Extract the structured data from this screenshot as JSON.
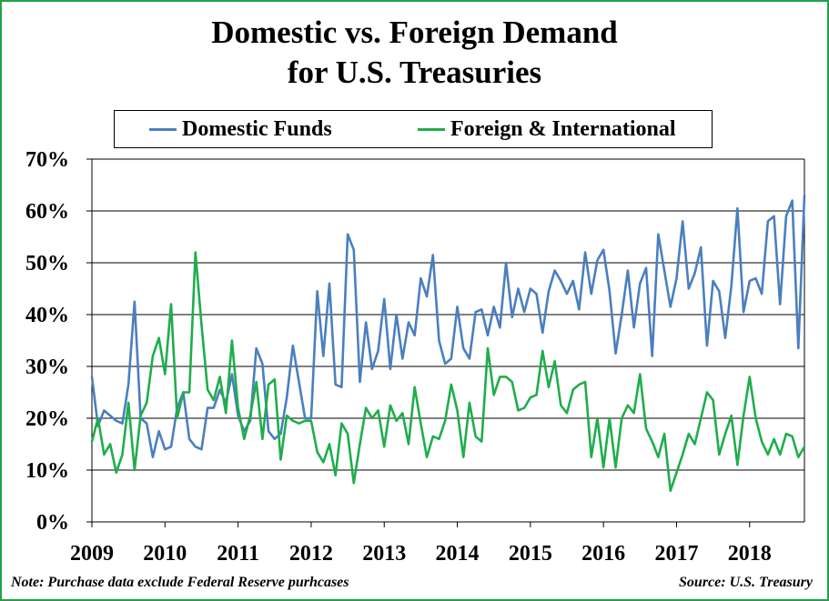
{
  "title_line1": "Domestic vs. Foreign Demand",
  "title_line2": "for U.S. Treasuries",
  "note": "Note: Purchase data exclude Federal Reserve purhcases",
  "source": "Source: U.S. Treasury",
  "colors": {
    "domestic": "#4a7fbf",
    "foreign": "#1fad4c",
    "frame": "#22a04b",
    "grid": "#000000"
  },
  "chart_data": {
    "type": "line",
    "title": "Domestic vs. Foreign Demand for U.S. Treasuries",
    "xlabel": "",
    "ylabel": "",
    "ylim": [
      0,
      70
    ],
    "yticks": [
      0,
      10,
      20,
      30,
      40,
      50,
      60,
      70
    ],
    "ytick_labels": [
      "0%",
      "10%",
      "20%",
      "30%",
      "40%",
      "50%",
      "60%",
      "70%"
    ],
    "xlim": [
      2009,
      2018.75
    ],
    "xticks": [
      2009,
      2010,
      2011,
      2012,
      2013,
      2014,
      2015,
      2016,
      2017,
      2018
    ],
    "xtick_labels": [
      "2009",
      "2010",
      "2011",
      "2012",
      "2013",
      "2014",
      "2015",
      "2016",
      "2017",
      "2018"
    ],
    "grid": "horizontal",
    "legend_position": "top",
    "x_start": "2009-01",
    "x_frequency": "monthly",
    "series": [
      {
        "name": "Domestic Funds",
        "values": [
          28,
          18.5,
          21.5,
          20.5,
          19.5,
          19,
          26.5,
          42.5,
          20,
          19,
          12.5,
          17.5,
          14,
          14.5,
          22,
          25,
          16,
          14.5,
          14,
          22,
          22,
          25.5,
          23,
          28.5,
          20.5,
          17.5,
          19.5,
          33.5,
          30.5,
          17.5,
          16,
          17,
          24,
          34,
          27,
          20,
          20,
          44.5,
          32,
          46,
          26.5,
          26,
          55.5,
          52.5,
          27,
          38.5,
          29.5,
          33,
          43,
          29.5,
          40,
          31.5,
          38.5,
          36,
          47,
          43.5,
          51.5,
          35,
          30.5,
          31.5,
          41.5,
          33.5,
          31.5,
          40.5,
          41,
          36,
          41.5,
          37.5,
          50,
          39.5,
          45,
          40.5,
          45,
          44,
          36.5,
          44.5,
          48.5,
          46.5,
          44,
          46.5,
          41,
          52,
          44,
          50.5,
          52.5,
          44.5,
          32.5,
          40,
          48.5,
          37.5,
          46,
          49,
          32,
          55.5,
          48.5,
          41.5,
          47,
          58,
          45,
          48,
          53,
          34,
          46.5,
          44.5,
          35.5,
          45.5,
          60.5,
          40.5,
          46.5,
          47,
          44,
          58,
          59,
          42,
          59,
          62,
          33.5,
          63
        ]
      },
      {
        "name": "Foreign & International",
        "values": [
          15.5,
          20,
          13,
          15,
          9.5,
          13,
          23,
          10,
          20.5,
          23,
          32,
          35.5,
          28.5,
          42,
          20,
          25,
          25,
          52,
          38,
          25.5,
          23.5,
          28,
          21,
          35,
          22,
          16,
          20.5,
          27,
          16,
          26.5,
          27.5,
          12,
          20.5,
          19.5,
          19,
          19.5,
          19.5,
          13.5,
          11.5,
          15,
          9,
          19,
          17,
          7.5,
          15,
          22,
          20,
          21.5,
          14.5,
          22.5,
          19.5,
          21,
          15,
          26,
          19,
          12.5,
          16.5,
          16,
          19.5,
          26.5,
          21.5,
          12.5,
          23,
          16.5,
          15.5,
          33.5,
          24.5,
          28,
          28,
          27,
          21.5,
          22,
          24,
          24.5,
          33,
          26,
          31,
          22.5,
          21,
          25.5,
          26.5,
          27,
          12.5,
          20,
          10.5,
          20,
          10.5,
          20,
          22.5,
          21,
          28.5,
          18,
          15.5,
          12.5,
          17,
          6,
          9.5,
          13,
          17,
          15,
          20,
          25,
          23.5,
          13,
          17,
          20.5,
          11,
          20.5,
          28,
          20,
          15.5,
          13,
          16,
          13,
          17,
          16.5,
          12.5,
          14.5
        ]
      }
    ]
  }
}
